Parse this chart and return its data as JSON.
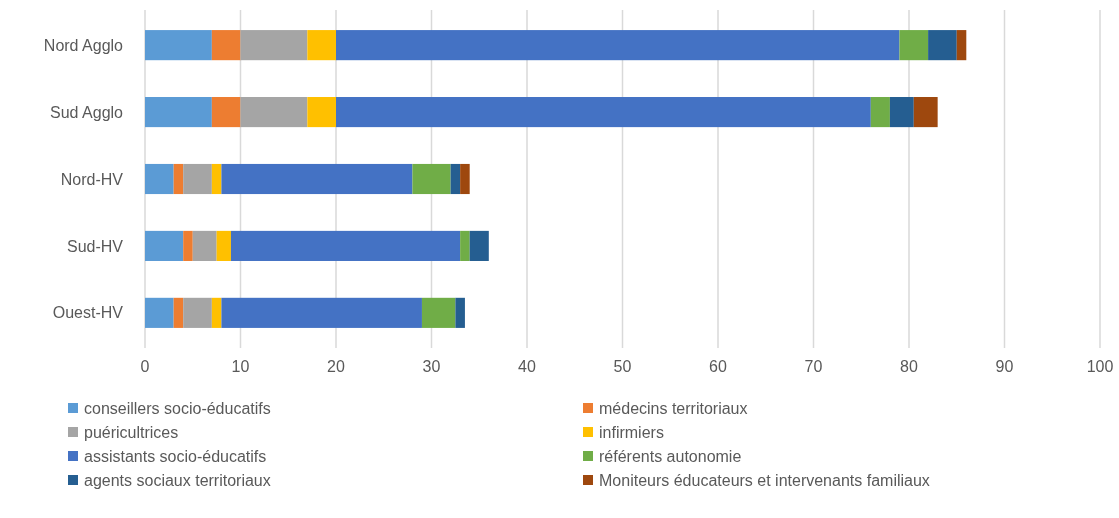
{
  "chart_data": {
    "type": "bar",
    "orientation": "horizontal",
    "stacked": true,
    "categories": [
      "Nord Agglo",
      "Sud Agglo",
      "Nord-HV",
      "Sud-HV",
      "Ouest-HV"
    ],
    "series": [
      {
        "name": "conseillers socio-éducatifs",
        "color": "#5b9bd5",
        "values": [
          7,
          7,
          3,
          4,
          3
        ]
      },
      {
        "name": "médecins territoriaux",
        "color": "#ed7d31",
        "values": [
          3,
          3,
          1,
          1,
          1
        ]
      },
      {
        "name": "puéricultrices",
        "color": "#a5a5a5",
        "values": [
          7,
          7,
          3,
          2.5,
          3
        ]
      },
      {
        "name": "infirmiers",
        "color": "#ffc000",
        "values": [
          3,
          3,
          1,
          1.5,
          1
        ]
      },
      {
        "name": "assistants socio-éducatifs",
        "color": "#4472c4",
        "values": [
          59,
          56,
          20,
          24,
          21
        ]
      },
      {
        "name": "référents autonomie",
        "color": "#70ad47",
        "values": [
          3,
          2,
          4,
          1,
          3.5
        ]
      },
      {
        "name": "agents sociaux territoriaux",
        "color": "#255e91",
        "values": [
          3,
          2.5,
          1,
          2,
          1
        ]
      },
      {
        "name": "Moniteurs éducateurs et intervenants familiaux",
        "color": "#9e480e",
        "values": [
          1,
          2.5,
          1,
          0,
          0
        ]
      }
    ],
    "xlim": [
      0,
      100
    ],
    "xticks": [
      0,
      10,
      20,
      30,
      40,
      50,
      60,
      70,
      80,
      90,
      100
    ],
    "grid": "x",
    "legend": "bottom"
  }
}
